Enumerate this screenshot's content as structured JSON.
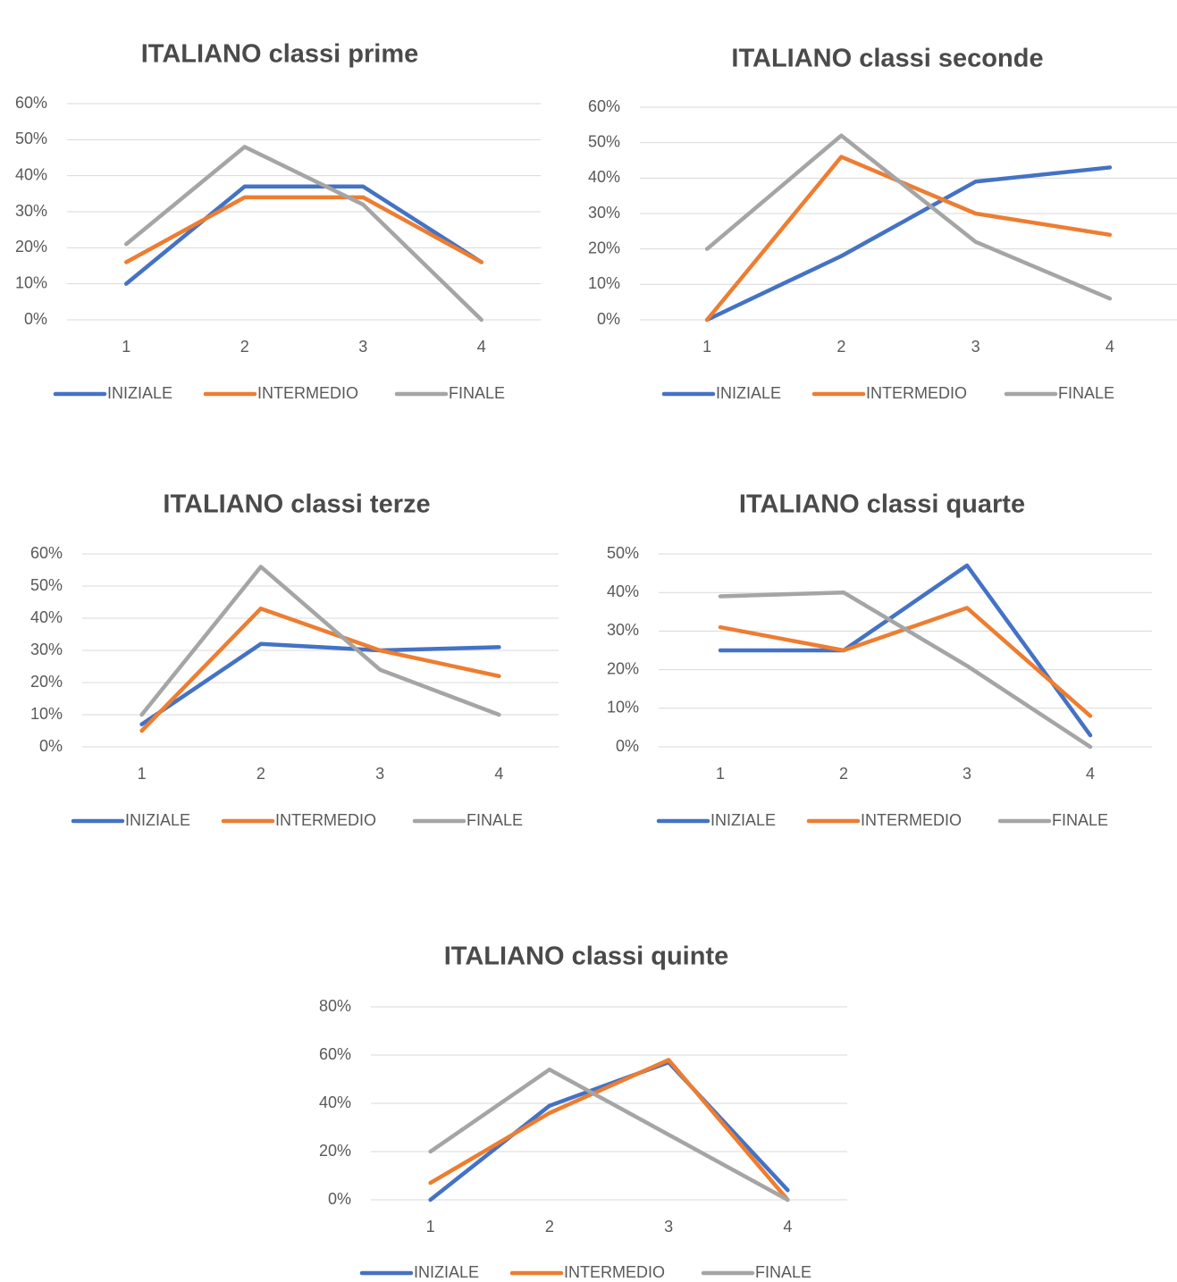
{
  "chart_data": [
    {
      "type": "line",
      "title": "ITALIANO classi prime",
      "categories": [
        "1",
        "2",
        "3",
        "4"
      ],
      "series": [
        {
          "name": "INIZIALE",
          "color": "#4472c4",
          "values": [
            10,
            37,
            37,
            16
          ]
        },
        {
          "name": "INTERMEDIO",
          "color": "#ed7d31",
          "values": [
            16,
            34,
            34,
            16
          ]
        },
        {
          "name": "FINALE",
          "color": "#a5a5a5",
          "values": [
            21,
            48,
            32,
            0
          ]
        }
      ],
      "ylim": [
        0,
        60
      ],
      "yticks": [
        {
          "value": 0,
          "label": "0%"
        },
        {
          "value": 10,
          "label": "10%"
        },
        {
          "value": 20,
          "label": "20%"
        },
        {
          "value": 30,
          "label": "30%"
        },
        {
          "value": 40,
          "label": "40%"
        },
        {
          "value": 50,
          "label": "50%"
        },
        {
          "value": 60,
          "label": "60%"
        }
      ],
      "grid": true,
      "legend": "bottom"
    },
    {
      "type": "line",
      "title": "ITALIANO classi seconde",
      "categories": [
        "1",
        "2",
        "3",
        "4"
      ],
      "series": [
        {
          "name": "INIZIALE",
          "color": "#4472c4",
          "values": [
            0,
            18,
            39,
            43
          ]
        },
        {
          "name": "INTERMEDIO",
          "color": "#ed7d31",
          "values": [
            0,
            46,
            30,
            24
          ]
        },
        {
          "name": "FINALE",
          "color": "#a5a5a5",
          "values": [
            20,
            52,
            22,
            6
          ]
        }
      ],
      "ylim": [
        0,
        60
      ],
      "yticks": [
        {
          "value": 0,
          "label": "0%"
        },
        {
          "value": 10,
          "label": "10%"
        },
        {
          "value": 20,
          "label": "20%"
        },
        {
          "value": 30,
          "label": "30%"
        },
        {
          "value": 40,
          "label": "40%"
        },
        {
          "value": 50,
          "label": "50%"
        },
        {
          "value": 60,
          "label": "60%"
        }
      ],
      "grid": true,
      "legend": "bottom"
    },
    {
      "type": "line",
      "title": "ITALIANO classi terze",
      "categories": [
        "1",
        "2",
        "3",
        "4"
      ],
      "series": [
        {
          "name": "INIZIALE",
          "color": "#4472c4",
          "values": [
            7,
            32,
            30,
            31
          ]
        },
        {
          "name": "INTERMEDIO",
          "color": "#ed7d31",
          "values": [
            5,
            43,
            30,
            22
          ]
        },
        {
          "name": "FINALE",
          "color": "#a5a5a5",
          "values": [
            10,
            56,
            24,
            10
          ]
        }
      ],
      "ylim": [
        0,
        60
      ],
      "yticks": [
        {
          "value": 0,
          "label": "0%"
        },
        {
          "value": 10,
          "label": "10%"
        },
        {
          "value": 20,
          "label": "20%"
        },
        {
          "value": 30,
          "label": "30%"
        },
        {
          "value": 40,
          "label": "40%"
        },
        {
          "value": 50,
          "label": "50%"
        },
        {
          "value": 60,
          "label": "60%"
        }
      ],
      "grid": true,
      "legend": "bottom"
    },
    {
      "type": "line",
      "title": "ITALIANO classi quarte",
      "categories": [
        "1",
        "2",
        "3",
        "4"
      ],
      "series": [
        {
          "name": "INIZIALE",
          "color": "#4472c4",
          "values": [
            25,
            25,
            47,
            3
          ]
        },
        {
          "name": "INTERMEDIO",
          "color": "#ed7d31",
          "values": [
            31,
            25,
            36,
            8
          ]
        },
        {
          "name": "FINALE",
          "color": "#a5a5a5",
          "values": [
            39,
            40,
            21,
            0
          ]
        }
      ],
      "ylim": [
        0,
        50
      ],
      "yticks": [
        {
          "value": 0,
          "label": "0%"
        },
        {
          "value": 10,
          "label": "10%"
        },
        {
          "value": 20,
          "label": "20%"
        },
        {
          "value": 30,
          "label": "30%"
        },
        {
          "value": 40,
          "label": "40%"
        },
        {
          "value": 50,
          "label": "50%"
        }
      ],
      "grid": true,
      "legend": "bottom"
    },
    {
      "type": "line",
      "title": "ITALIANO classi quinte",
      "categories": [
        "1",
        "2",
        "3",
        "4"
      ],
      "series": [
        {
          "name": "INIZIALE",
          "color": "#4472c4",
          "values": [
            0,
            39,
            57,
            4
          ]
        },
        {
          "name": "INTERMEDIO",
          "color": "#ed7d31",
          "values": [
            7,
            36,
            58,
            0
          ]
        },
        {
          "name": "FINALE",
          "color": "#a5a5a5",
          "values": [
            20,
            54,
            27,
            0
          ]
        }
      ],
      "ylim": [
        0,
        80
      ],
      "yticks": [
        {
          "value": 0,
          "label": "0%"
        },
        {
          "value": 20,
          "label": "20%"
        },
        {
          "value": 40,
          "label": "40%"
        },
        {
          "value": 60,
          "label": "60%"
        },
        {
          "value": 80,
          "label": "80%"
        }
      ],
      "grid": true,
      "legend": "bottom"
    }
  ]
}
